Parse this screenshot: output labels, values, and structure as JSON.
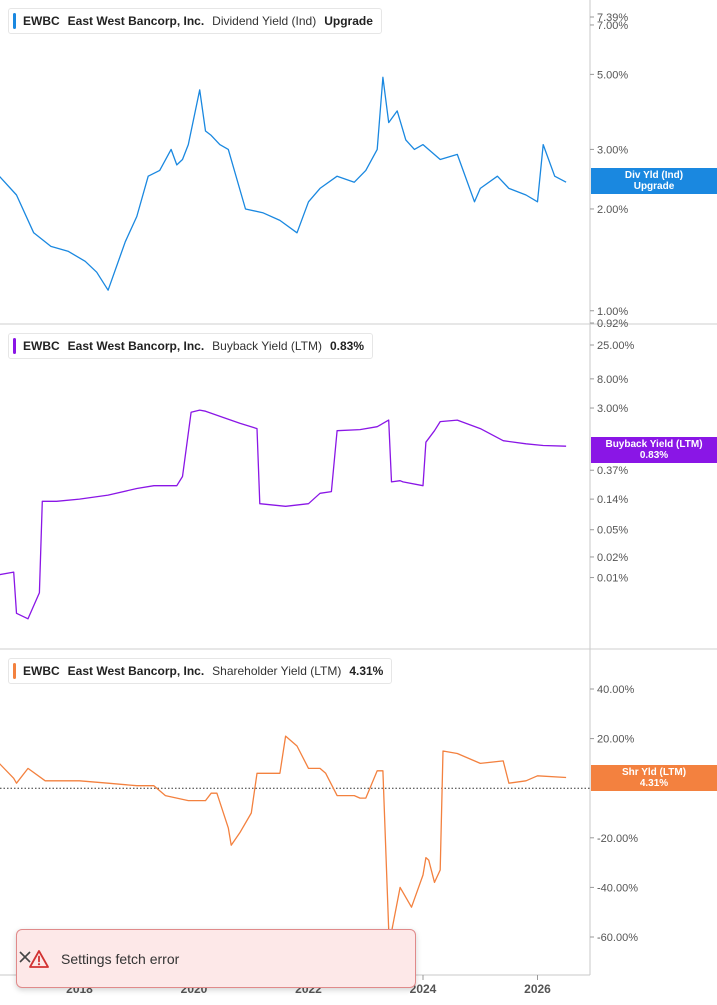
{
  "colors": {
    "div": "#1a88e0",
    "buy": "#8a16e6",
    "shr": "#f3813f",
    "grid": "#dddddd",
    "axis_text": "#555555",
    "toast_bg": "#fde8e8",
    "toast_icon": "#d23232"
  },
  "panels": [
    {
      "legend": [
        "EWBC",
        "East West Bancorp, Inc.",
        "Dividend Yield (Ind)",
        "Upgrade"
      ],
      "badge_lines": [
        "Div Yld (Ind)",
        "Upgrade"
      ],
      "ticks": [
        "7.39%",
        "7.00%",
        "5.00%",
        "3.00%",
        "2.00%",
        "1.00%",
        "0.92%"
      ]
    },
    {
      "legend": [
        "EWBC",
        "East West Bancorp, Inc.",
        "Buyback Yield (LTM)",
        "0.83%"
      ],
      "badge_lines": [
        "Buyback Yield (LTM)",
        "0.83%"
      ],
      "ticks": [
        "25.00%",
        "8.00%",
        "3.00%",
        "0.37%",
        "0.14%",
        "0.05%",
        "0.02%",
        "0.01%"
      ]
    },
    {
      "legend": [
        "EWBC",
        "East West Bancorp, Inc.",
        "Shareholder Yield (LTM)",
        "4.31%"
      ],
      "badge_lines": [
        "Shr Yld (LTM)",
        "4.31%"
      ],
      "ticks": [
        "40.00%",
        "20.00%",
        "-20.00%",
        "-40.00%",
        "-60.00%"
      ]
    }
  ],
  "x_axis": {
    "labels": [
      "2018",
      "2020",
      "2022",
      "2024",
      "2026"
    ]
  },
  "toast": {
    "message": "Settings fetch error",
    "icon": "warning-icon",
    "close_icon": "close-icon"
  },
  "chart_data": [
    {
      "type": "line",
      "title": "EWBC East West Bancorp, Inc. Dividend Yield (Ind)",
      "scale": "log",
      "series": [
        {
          "name": "Dividend Yield (Ind)",
          "x": [
            2016.6,
            2016.9,
            2017.2,
            2017.5,
            2017.8,
            2018.1,
            2018.3,
            2018.5,
            2018.8,
            2019.0,
            2019.2,
            2019.4,
            2019.6,
            2019.7,
            2019.8,
            2019.9,
            2020.1,
            2020.2,
            2020.3,
            2020.45,
            2020.6,
            2020.9,
            2021.2,
            2021.5,
            2021.8,
            2022.0,
            2022.2,
            2022.5,
            2022.8,
            2023.0,
            2023.2,
            2023.3,
            2023.4,
            2023.55,
            2023.7,
            2023.85,
            2024.0,
            2024.3,
            2024.6,
            2024.9,
            2025.0,
            2025.3,
            2025.5,
            2025.8,
            2026.0,
            2026.1,
            2026.3,
            2026.5
          ],
          "values": [
            2.5,
            2.2,
            1.7,
            1.55,
            1.5,
            1.4,
            1.3,
            1.15,
            1.6,
            1.9,
            2.5,
            2.6,
            3.0,
            2.7,
            2.8,
            3.1,
            4.5,
            3.4,
            3.3,
            3.1,
            3.0,
            2.0,
            1.95,
            1.85,
            1.7,
            2.1,
            2.3,
            2.5,
            2.4,
            2.6,
            3.0,
            4.9,
            3.6,
            3.9,
            3.2,
            3.0,
            3.1,
            2.8,
            2.9,
            2.1,
            2.3,
            2.5,
            2.3,
            2.2,
            2.1,
            3.1,
            2.5,
            2.4
          ]
        }
      ],
      "ylim": [
        0.92,
        7.39
      ]
    },
    {
      "type": "line",
      "title": "EWBC East West Bancorp, Inc. Buyback Yield (LTM)",
      "scale": "log",
      "series": [
        {
          "name": "Buyback Yield (LTM)",
          "x": [
            2016.6,
            2016.85,
            2016.9,
            2017.1,
            2017.3,
            2017.35,
            2017.6,
            2018.0,
            2018.5,
            2019.0,
            2019.3,
            2019.7,
            2019.8,
            2019.95,
            2020.1,
            2020.2,
            2020.5,
            2020.8,
            2021.1,
            2021.15,
            2021.6,
            2022.0,
            2022.2,
            2022.4,
            2022.5,
            2022.9,
            2023.2,
            2023.4,
            2023.45,
            2023.6,
            2023.65,
            2024.0,
            2024.05,
            2024.2,
            2024.3,
            2024.6,
            2025.0,
            2025.4,
            2025.8,
            2026.1,
            2026.5
          ],
          "values": [
            0.011,
            0.012,
            0.003,
            0.0025,
            0.006,
            0.13,
            0.13,
            0.14,
            0.16,
            0.2,
            0.22,
            0.22,
            0.3,
            2.6,
            2.8,
            2.7,
            2.2,
            1.8,
            1.5,
            0.12,
            0.11,
            0.12,
            0.17,
            0.18,
            1.4,
            1.45,
            1.6,
            2.0,
            0.25,
            0.26,
            0.25,
            0.22,
            0.95,
            1.4,
            1.9,
            2.0,
            1.5,
            1.0,
            0.9,
            0.85,
            0.83
          ]
        }
      ],
      "ylim": [
        0.001,
        25.0
      ]
    },
    {
      "type": "line",
      "title": "EWBC East West Bancorp, Inc. Shareholder Yield (LTM)",
      "series": [
        {
          "name": "Shareholder Yield (LTM)",
          "x": [
            2016.6,
            2016.85,
            2016.9,
            2017.1,
            2017.4,
            2018.0,
            2018.5,
            2019.0,
            2019.3,
            2019.5,
            2019.9,
            2020.2,
            2020.3,
            2020.4,
            2020.6,
            2020.65,
            2020.8,
            2021.0,
            2021.1,
            2021.5,
            2021.6,
            2021.8,
            2022.0,
            2022.2,
            2022.3,
            2022.5,
            2022.8,
            2022.9,
            2023.0,
            2023.2,
            2023.3,
            2023.4,
            2023.45,
            2023.6,
            2023.8,
            2024.0,
            2024.05,
            2024.1,
            2024.2,
            2024.3,
            2024.35,
            2024.6,
            2025.0,
            2025.4,
            2025.5,
            2025.8,
            2026.0,
            2026.5
          ],
          "values": [
            10,
            4,
            2,
            8,
            3,
            3,
            2,
            1,
            1,
            -3,
            -5,
            -5,
            -2,
            -2,
            -16,
            -23,
            -18,
            -10,
            6,
            6,
            21,
            17,
            8,
            8,
            6,
            -3,
            -3,
            -4,
            -4,
            7,
            7,
            -57,
            -58,
            -40,
            -48,
            -35,
            -28,
            -29,
            -38,
            -33,
            15,
            14,
            10,
            11,
            2,
            3,
            5,
            4.3
          ]
        }
      ],
      "ylim": [
        -65,
        45
      ]
    }
  ]
}
